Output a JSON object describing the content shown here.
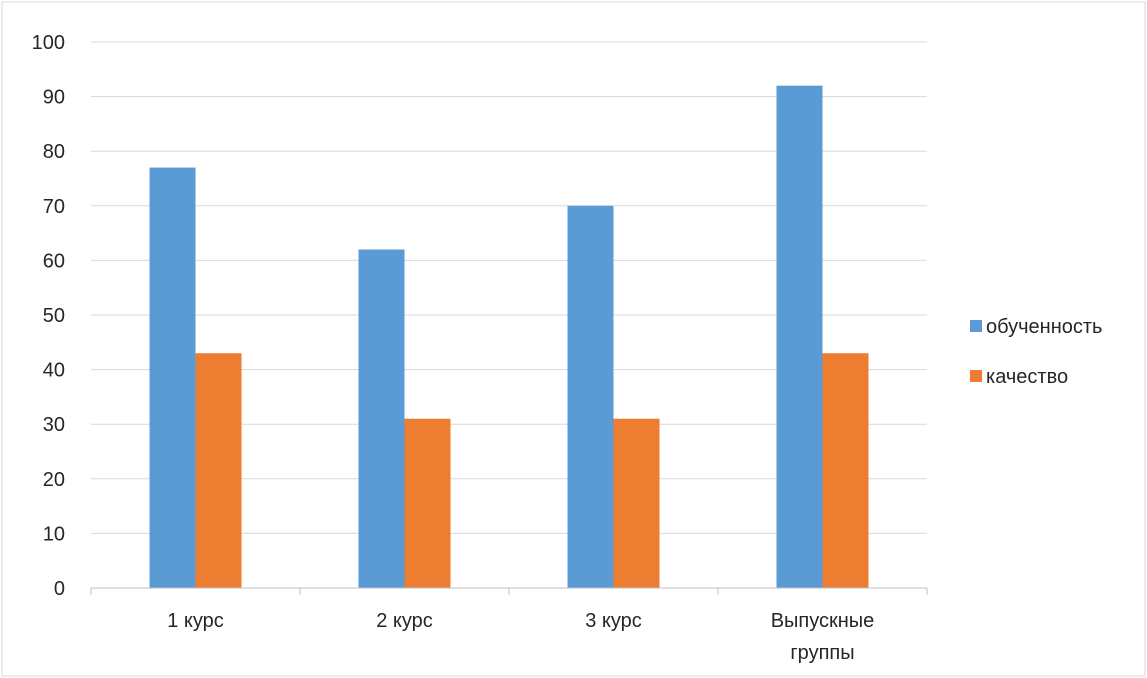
{
  "chart_data": {
    "type": "bar",
    "title": "",
    "xlabel": "",
    "ylabel": "",
    "categories": [
      "1 курс",
      "2 курс",
      "3 курс",
      "Выпускные группы"
    ],
    "category_lines": [
      [
        "1 курс"
      ],
      [
        "2 курс"
      ],
      [
        "3 курс"
      ],
      [
        "Выпускные",
        "группы"
      ]
    ],
    "series": [
      {
        "name": "обученность",
        "values": [
          77,
          62,
          70,
          92
        ],
        "color": "#5B9BD5"
      },
      {
        "name": "качество",
        "values": [
          43,
          31,
          31,
          43
        ],
        "color": "#ED7D31"
      }
    ],
    "ylim": [
      0,
      100
    ],
    "yticks": [
      0,
      10,
      20,
      30,
      40,
      50,
      60,
      70,
      80,
      90,
      100
    ],
    "grid": true,
    "legend_position": "right"
  }
}
